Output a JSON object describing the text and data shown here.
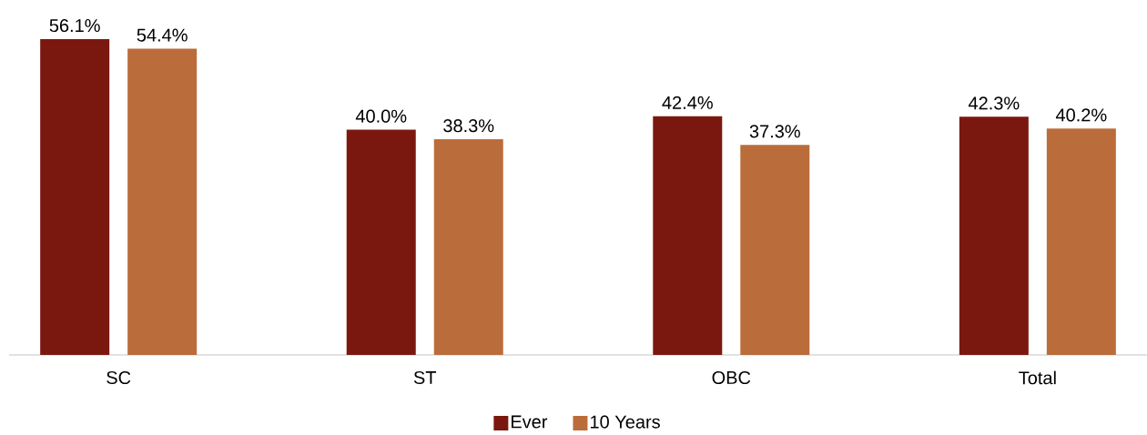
{
  "chart_data": {
    "type": "bar",
    "categories": [
      "SC",
      "ST",
      "OBC",
      "Total"
    ],
    "series": [
      {
        "name": "Ever",
        "color": "#7a1810",
        "values": [
          56.1,
          40.0,
          42.4,
          42.3
        ],
        "value_labels": [
          "56.1%",
          "40.0%",
          "42.4%",
          "42.3%"
        ]
      },
      {
        "name": "10 Years",
        "color": "#bb6c3b",
        "values": [
          54.4,
          38.3,
          37.3,
          40.2
        ],
        "value_labels": [
          "54.4%",
          "38.3%",
          "37.3%",
          "40.2%"
        ]
      }
    ],
    "legend": "bottom",
    "tick_labels": "x"
  }
}
